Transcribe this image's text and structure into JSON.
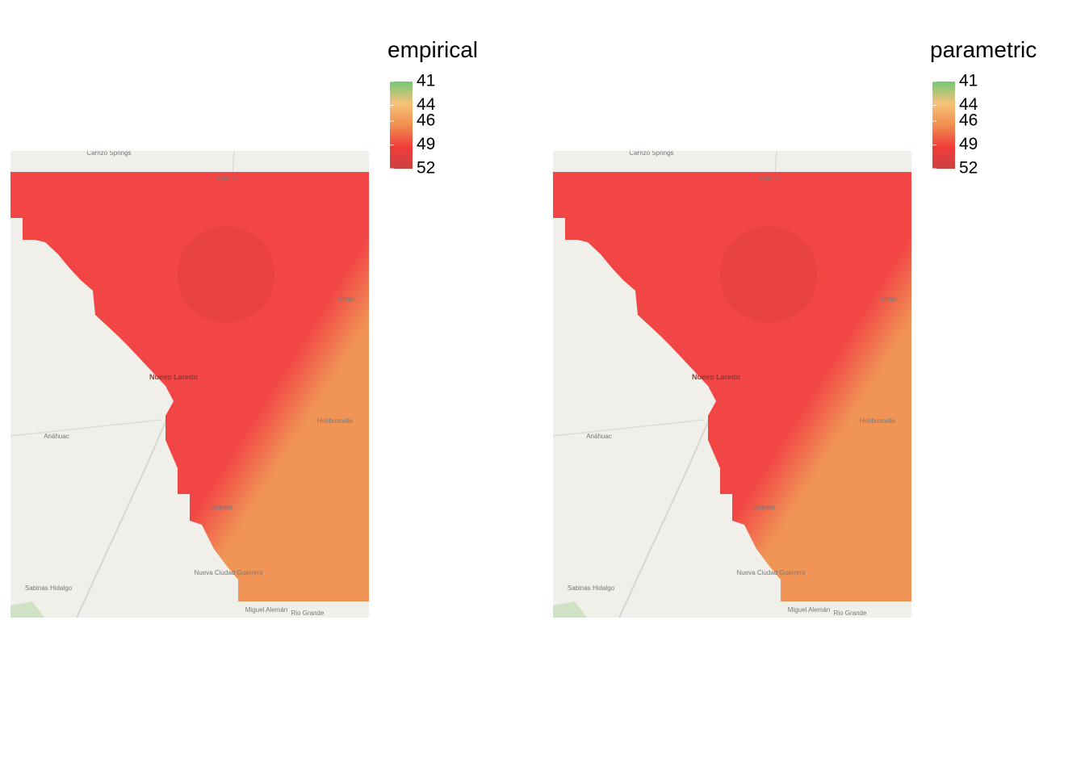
{
  "panels": [
    {
      "legend_title": "empirical",
      "ticks": [
        41,
        44,
        46,
        49,
        52
      ],
      "lim": [
        41,
        52
      ]
    },
    {
      "legend_title": "parametric",
      "ticks": [
        41,
        44,
        46,
        49,
        52
      ],
      "lim": [
        41,
        52
      ]
    }
  ],
  "colors": [
    "#74c876",
    "#f7c17a",
    "#f0904e",
    "#f23c3c",
    "#c9413f"
  ],
  "places": [
    "Carrizo Springs",
    "Cotulla",
    "Freer",
    "Nuevo Laredo",
    "Anáhuac",
    "Hebbronville",
    "Zapata",
    "Sabinas Hidalgo",
    "Nueva Ciudad Guerrero",
    "Miguel Alemán",
    "Rio Grande"
  ]
}
